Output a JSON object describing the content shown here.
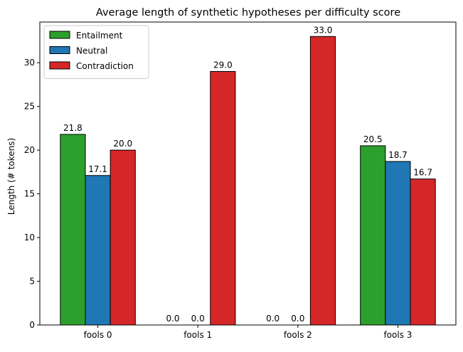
{
  "chart_data": {
    "type": "bar",
    "title": "Average length of synthetic hypotheses per difficulty score",
    "xlabel": "",
    "ylabel": "Length (# tokens)",
    "categories": [
      "fools 0",
      "fools 1",
      "fools 2",
      "fools 3"
    ],
    "series": [
      {
        "name": "Entailment",
        "values": [
          21.8,
          0.0,
          0.0,
          20.5
        ],
        "color": "#2ca02c"
      },
      {
        "name": "Neutral",
        "values": [
          17.1,
          0.0,
          0.0,
          18.7
        ],
        "color": "#1f77b4"
      },
      {
        "name": "Contradiction",
        "values": [
          20.0,
          29.0,
          33.0,
          16.7
        ],
        "color": "#d62728"
      }
    ],
    "value_labels": [
      [
        "21.8",
        "0.0",
        "0.0",
        "20.5"
      ],
      [
        "17.1",
        "0.0",
        "0.0",
        "18.7"
      ],
      [
        "20.0",
        "29.0",
        "33.0",
        "16.7"
      ]
    ],
    "ylim": [
      0,
      34.65
    ],
    "yticks": [
      0,
      5,
      10,
      15,
      20,
      25,
      30
    ],
    "ytick_labels": [
      "0",
      "5",
      "10",
      "15",
      "20",
      "25",
      "30"
    ],
    "grid": false,
    "legend_position": "top-left"
  }
}
